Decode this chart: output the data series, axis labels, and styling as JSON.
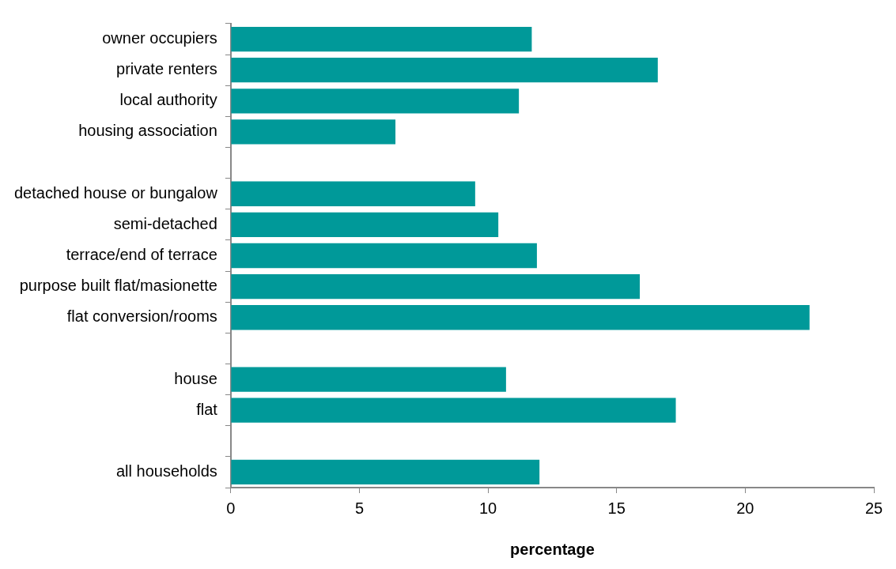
{
  "chart_data": {
    "type": "bar",
    "orientation": "horizontal",
    "xlabel": "percentage",
    "categories": [
      "owner occupiers",
      "private renters",
      "local authority",
      "housing association",
      null,
      "detached house or bungalow",
      "semi-detached",
      "terrace/end of terrace",
      "purpose built flat/masionette",
      "flat conversion/rooms",
      null,
      "house",
      "flat",
      null,
      "all households"
    ],
    "values": [
      11.7,
      16.6,
      11.2,
      6.4,
      null,
      9.5,
      10.4,
      11.9,
      15.9,
      22.5,
      null,
      10.7,
      17.3,
      null,
      12.0
    ],
    "color": "#009999",
    "xlim": [
      0,
      25
    ],
    "xticks": [
      0,
      5,
      10,
      15,
      20,
      25
    ],
    "grid": false,
    "legend": false
  }
}
